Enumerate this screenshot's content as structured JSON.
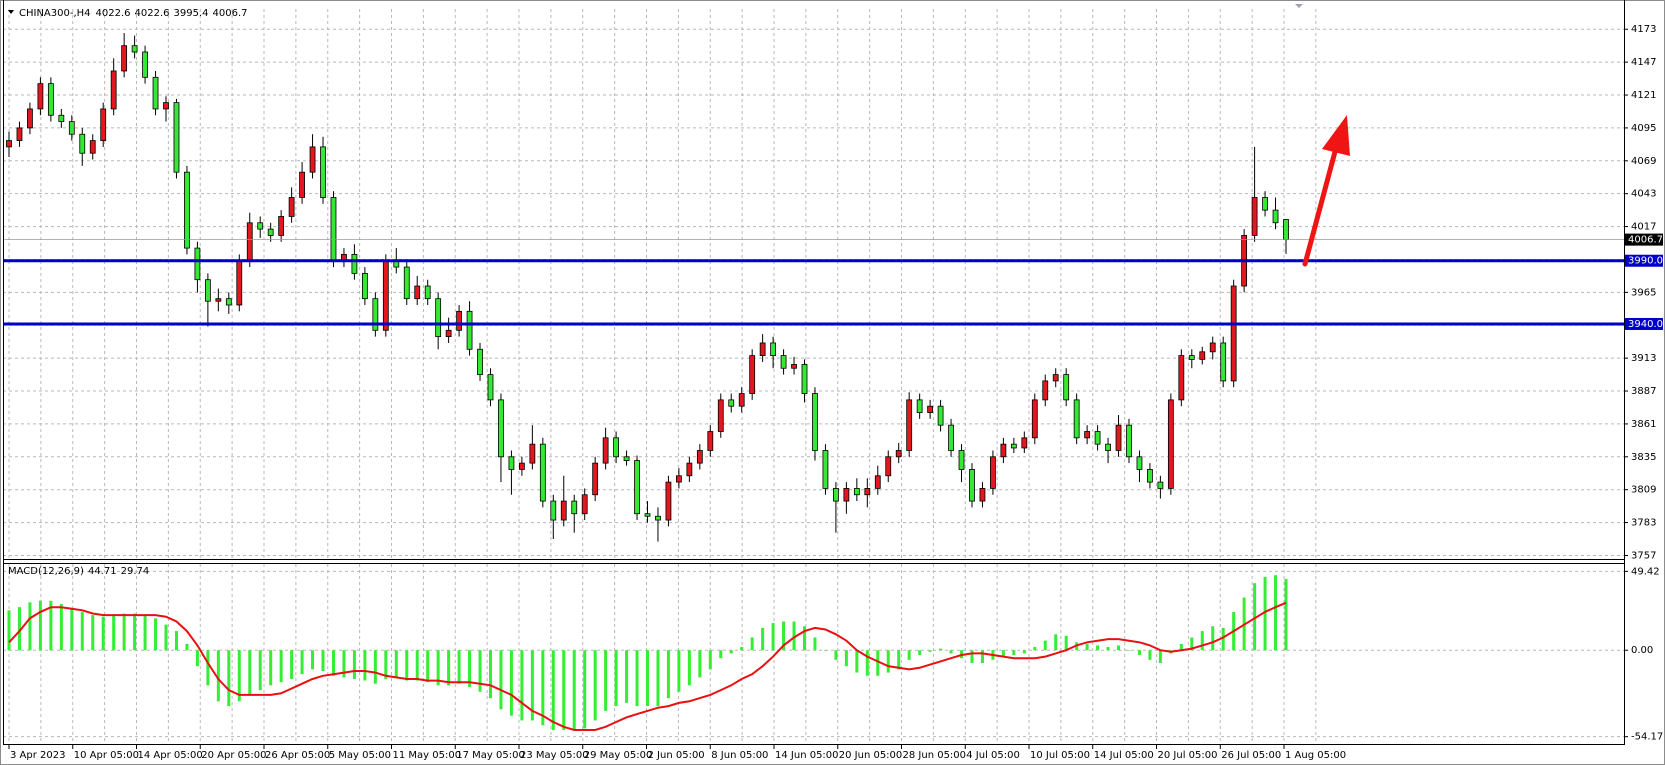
{
  "chart_data": {
    "type": "candlestick",
    "symbol": "CHINA300-,H4",
    "up_color": "#e3171f",
    "down_color": "#36e836",
    "candles": [
      [
        4080,
        4092,
        4072,
        4085
      ],
      [
        4085,
        4100,
        4080,
        4095
      ],
      [
        4095,
        4115,
        4090,
        4110
      ],
      [
        4110,
        4135,
        4105,
        4130
      ],
      [
        4130,
        4135,
        4100,
        4105
      ],
      [
        4105,
        4110,
        4095,
        4100
      ],
      [
        4100,
        4105,
        4085,
        4090
      ],
      [
        4090,
        4095,
        4065,
        4075
      ],
      [
        4075,
        4090,
        4070,
        4085
      ],
      [
        4085,
        4115,
        4080,
        4110
      ],
      [
        4110,
        4150,
        4105,
        4140
      ],
      [
        4140,
        4170,
        4135,
        4160
      ],
      [
        4160,
        4168,
        4150,
        4155
      ],
      [
        4155,
        4160,
        4130,
        4135
      ],
      [
        4135,
        4140,
        4105,
        4110
      ],
      [
        4110,
        4120,
        4100,
        4115
      ],
      [
        4115,
        4118,
        4055,
        4060
      ],
      [
        4060,
        4065,
        3995,
        4000
      ],
      [
        4000,
        4005,
        3965,
        3975
      ],
      [
        3975,
        3980,
        3938,
        3958
      ],
      [
        3958,
        3968,
        3950,
        3960
      ],
      [
        3960,
        3965,
        3948,
        3955
      ],
      [
        3955,
        3995,
        3950,
        3990
      ],
      [
        3990,
        4028,
        3985,
        4020
      ],
      [
        4020,
        4025,
        4008,
        4015
      ],
      [
        4015,
        4020,
        4005,
        4010
      ],
      [
        4010,
        4030,
        4005,
        4025
      ],
      [
        4025,
        4048,
        4020,
        4040
      ],
      [
        4040,
        4068,
        4035,
        4060
      ],
      [
        4060,
        4090,
        4055,
        4080
      ],
      [
        4080,
        4088,
        4035,
        4040
      ],
      [
        4040,
        4045,
        3985,
        3990
      ],
      [
        3990,
        4000,
        3985,
        3995
      ],
      [
        3995,
        4003,
        3975,
        3980
      ],
      [
        3980,
        3985,
        3955,
        3960
      ],
      [
        3960,
        3965,
        3930,
        3935
      ],
      [
        3935,
        3995,
        3930,
        3990
      ],
      [
        3990,
        4000,
        3980,
        3985
      ],
      [
        3985,
        3990,
        3955,
        3960
      ],
      [
        3960,
        3978,
        3955,
        3970
      ],
      [
        3970,
        3975,
        3955,
        3960
      ],
      [
        3960,
        3965,
        3920,
        3930
      ],
      [
        3930,
        3945,
        3925,
        3935
      ],
      [
        3935,
        3955,
        3930,
        3950
      ],
      [
        3950,
        3958,
        3915,
        3920
      ],
      [
        3920,
        3925,
        3895,
        3900
      ],
      [
        3900,
        3905,
        3875,
        3880
      ],
      [
        3880,
        3885,
        3815,
        3835
      ],
      [
        3835,
        3840,
        3805,
        3825
      ],
      [
        3825,
        3835,
        3820,
        3830
      ],
      [
        3830,
        3860,
        3825,
        3845
      ],
      [
        3845,
        3850,
        3795,
        3800
      ],
      [
        3800,
        3805,
        3770,
        3785
      ],
      [
        3785,
        3820,
        3780,
        3800
      ],
      [
        3800,
        3805,
        3775,
        3790
      ],
      [
        3790,
        3810,
        3785,
        3805
      ],
      [
        3805,
        3835,
        3800,
        3830
      ],
      [
        3830,
        3858,
        3825,
        3850
      ],
      [
        3850,
        3855,
        3830,
        3835
      ],
      [
        3835,
        3840,
        3828,
        3832
      ],
      [
        3832,
        3836,
        3785,
        3790
      ],
      [
        3790,
        3800,
        3783,
        3788
      ],
      [
        3788,
        3795,
        3768,
        3785
      ],
      [
        3785,
        3820,
        3780,
        3815
      ],
      [
        3815,
        3826,
        3810,
        3820
      ],
      [
        3820,
        3835,
        3815,
        3830
      ],
      [
        3830,
        3845,
        3825,
        3840
      ],
      [
        3840,
        3860,
        3835,
        3855
      ],
      [
        3855,
        3885,
        3850,
        3880
      ],
      [
        3880,
        3885,
        3870,
        3875
      ],
      [
        3875,
        3890,
        3870,
        3885
      ],
      [
        3885,
        3920,
        3880,
        3915
      ],
      [
        3915,
        3932,
        3910,
        3925
      ],
      [
        3925,
        3930,
        3905,
        3915
      ],
      [
        3915,
        3920,
        3900,
        3905
      ],
      [
        3905,
        3914,
        3900,
        3908
      ],
      [
        3908,
        3912,
        3878,
        3885
      ],
      [
        3885,
        3890,
        3832,
        3840
      ],
      [
        3840,
        3845,
        3805,
        3810
      ],
      [
        3810,
        3815,
        3775,
        3800
      ],
      [
        3800,
        3815,
        3790,
        3810
      ],
      [
        3810,
        3818,
        3800,
        3805
      ],
      [
        3805,
        3818,
        3795,
        3810
      ],
      [
        3810,
        3828,
        3805,
        3820
      ],
      [
        3820,
        3840,
        3815,
        3835
      ],
      [
        3835,
        3846,
        3830,
        3840
      ],
      [
        3840,
        3886,
        3835,
        3880
      ],
      [
        3880,
        3885,
        3865,
        3870
      ],
      [
        3870,
        3880,
        3865,
        3875
      ],
      [
        3875,
        3880,
        3855,
        3860
      ],
      [
        3860,
        3865,
        3835,
        3840
      ],
      [
        3840,
        3845,
        3815,
        3825
      ],
      [
        3825,
        3830,
        3795,
        3800
      ],
      [
        3800,
        3815,
        3795,
        3810
      ],
      [
        3810,
        3840,
        3805,
        3835
      ],
      [
        3835,
        3850,
        3830,
        3845
      ],
      [
        3845,
        3850,
        3838,
        3842
      ],
      [
        3842,
        3855,
        3838,
        3850
      ],
      [
        3850,
        3885,
        3845,
        3880
      ],
      [
        3880,
        3900,
        3875,
        3895
      ],
      [
        3895,
        3905,
        3890,
        3900
      ],
      [
        3900,
        3905,
        3875,
        3880
      ],
      [
        3880,
        3885,
        3845,
        3850
      ],
      [
        3850,
        3860,
        3845,
        3855
      ],
      [
        3855,
        3860,
        3840,
        3845
      ],
      [
        3845,
        3850,
        3830,
        3840
      ],
      [
        3840,
        3868,
        3835,
        3860
      ],
      [
        3860,
        3865,
        3830,
        3835
      ],
      [
        3835,
        3840,
        3815,
        3825
      ],
      [
        3825,
        3830,
        3810,
        3815
      ],
      [
        3815,
        3820,
        3802,
        3810
      ],
      [
        3810,
        3885,
        3805,
        3880
      ],
      [
        3880,
        3920,
        3875,
        3915
      ],
      [
        3915,
        3920,
        3905,
        3912
      ],
      [
        3912,
        3922,
        3908,
        3918
      ],
      [
        3918,
        3930,
        3912,
        3925
      ],
      [
        3925,
        3930,
        3890,
        3895
      ],
      [
        3895,
        3975,
        3890,
        3970
      ],
      [
        3970,
        4015,
        3965,
        4010
      ],
      [
        4010,
        4080,
        4005,
        4040
      ],
      [
        4040,
        4045,
        4025,
        4030
      ],
      [
        4030,
        4040,
        4015,
        4020
      ],
      [
        4022.6,
        4022.6,
        3995.4,
        4006.7
      ]
    ],
    "ylim": [
      3755,
      4189
    ],
    "yticks": [
      3757,
      3783,
      3809,
      3835,
      3861,
      3887,
      3913,
      3939,
      3965,
      3991,
      4017,
      4043,
      4069,
      4095,
      4121,
      4147,
      4173
    ],
    "grid": true,
    "levels": [
      {
        "value": 3990,
        "label": "3990.0",
        "color": "#0000c8"
      },
      {
        "value": 3940,
        "label": "3940.0",
        "color": "#0000c8"
      }
    ],
    "x_labels": [
      "3 Apr 2023",
      "10 Apr 05:00",
      "14 Apr 05:00",
      "20 Apr 05:00",
      "26 Apr 05:00",
      "5 May 05:00",
      "11 May 05:00",
      "17 May 05:00",
      "23 May 05:00",
      "29 May 05:00",
      "2 Jun 05:00",
      "8 Jun 05:00",
      "14 Jun 05:00",
      "20 Jun 05:00",
      "28 Jun 05:00",
      "4 Jul 05:00",
      "10 Jul 05:00",
      "14 Jul 05:00",
      "20 Jul 05:00",
      "26 Jul 05:00",
      "1 Aug 05:00"
    ],
    "indicator": {
      "type": "macd",
      "name": "MACD(12,26,9)",
      "hist_color": "#33ee33",
      "signal_color": "#e81010",
      "histogram": [
        25,
        27,
        30,
        31,
        31,
        29,
        26,
        24,
        22,
        21,
        22,
        23,
        23,
        22,
        20,
        16,
        12,
        4,
        -10,
        -22,
        -32,
        -35,
        -32,
        -28,
        -25,
        -22,
        -20,
        -18,
        -15,
        -12,
        -13,
        -16,
        -17,
        -18,
        -19,
        -21,
        -18,
        -17,
        -19,
        -19,
        -20,
        -22,
        -22,
        -21,
        -23,
        -26,
        -30,
        -37,
        -41,
        -44,
        -44,
        -47,
        -50,
        -50,
        -50,
        -49,
        -44,
        -38,
        -35,
        -33,
        -35,
        -35,
        -35,
        -30,
        -26,
        -22,
        -17,
        -12,
        -5,
        -2,
        2,
        8,
        14,
        17,
        18,
        18,
        15,
        8,
        0,
        -6,
        -10,
        -14,
        -16,
        -16,
        -14,
        -12,
        -6,
        -3,
        -1,
        1,
        -2,
        -5,
        -8,
        -8,
        -6,
        -4,
        -3,
        -2,
        2,
        6,
        10,
        9,
        5,
        4,
        3,
        2,
        3,
        0,
        -3,
        -6,
        -8,
        -2,
        4,
        8,
        12,
        15,
        14,
        24,
        33,
        42,
        46,
        47,
        44.71
      ],
      "signal": [
        5,
        12,
        20,
        24,
        27,
        27,
        26,
        25,
        23,
        22,
        22,
        22,
        22,
        22,
        22,
        21,
        18,
        12,
        3,
        -8,
        -18,
        -25,
        -28,
        -28,
        -28,
        -28,
        -27,
        -24,
        -21,
        -18,
        -16,
        -15,
        -14,
        -13,
        -13,
        -14,
        -16,
        -17,
        -18,
        -18,
        -19,
        -19,
        -20,
        -20,
        -20,
        -21,
        -22,
        -25,
        -28,
        -33,
        -38,
        -41,
        -45,
        -48,
        -50,
        -50,
        -50,
        -48,
        -45,
        -42,
        -40,
        -38,
        -36,
        -35,
        -33,
        -32,
        -30,
        -28,
        -25,
        -22,
        -18,
        -15,
        -10,
        -4,
        3,
        8,
        12,
        14,
        13,
        10,
        6,
        0,
        -4,
        -7,
        -10,
        -11,
        -12,
        -11,
        -9,
        -7,
        -5,
        -3,
        -2,
        -2,
        -3,
        -4,
        -5,
        -5,
        -5,
        -4,
        -2,
        0,
        3,
        5,
        6,
        7,
        7,
        6,
        5,
        3,
        0,
        -1,
        0,
        1,
        3,
        5,
        8,
        12,
        16,
        20,
        24,
        27,
        29.74
      ],
      "ylim": [
        -58.13,
        54.04
      ],
      "yticks": [
        -54.17,
        {
          "value": 0,
          "label": "0.00"
        },
        49.42
      ]
    }
  }
}
